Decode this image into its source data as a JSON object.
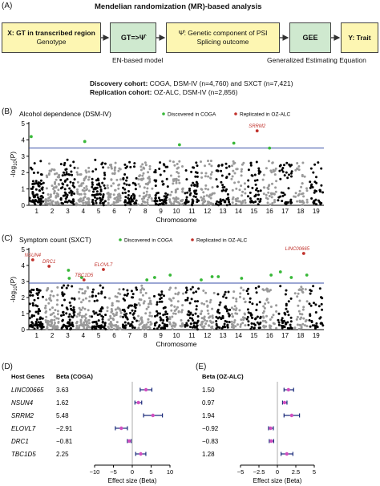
{
  "panel_a": {
    "letter": "(A)",
    "title": "Mendelian randomization (MR)-based analysis",
    "box_x_line1": "X: GT in transcribed region",
    "box_x_line2": "Genotype",
    "box_gt": "GT=>Ψ̂",
    "box_psi_line1": "Ψ̂: Genetic component of PSI",
    "box_psi_line2": "Splicing outcome",
    "box_gee": "GEE",
    "box_y": "Y: Trait",
    "label_en": "EN-based model",
    "label_gee": "Generalized Estimating Equation",
    "discovery_bold": "Discovery cohort:",
    "discovery_text": " COGA, DSM-IV (n=4,760) and SXCT (n=7,421)",
    "replication_bold": "Replication cohort:",
    "replication_text": " OZ-ALC, DSM-IV (n=2,856)",
    "colors": {
      "yellow": "#fdf6b2",
      "green": "#cfe9cf"
    }
  },
  "panel_b": {
    "letter": "(B)"
  },
  "panel_c": {
    "letter": "(C)"
  },
  "panel_d": {
    "letter": "(D)"
  },
  "panel_e": {
    "letter": "(E)"
  },
  "chart_data": [
    {
      "type": "scatter",
      "title": "Alcohol dependence (DSM-IV)",
      "xlabel": "Chromosome",
      "ylabel": "-log10(P)",
      "ylim": [
        0,
        5
      ],
      "yticks": [
        0,
        1,
        2,
        3,
        4,
        5
      ],
      "chromosomes": [
        "1",
        "2",
        "3",
        "4",
        "5",
        "6",
        "7",
        "8",
        "9",
        "10",
        "11",
        "12",
        "13",
        "14",
        "15",
        "16",
        "17",
        "18",
        "19"
      ],
      "threshold": 3.5,
      "legend": [
        "Discovered in COGA",
        "Replicated in OZ-ALC"
      ],
      "highlights": [
        {
          "x": 0.15,
          "y": 4.2,
          "type": "discovered"
        },
        {
          "x": 3.6,
          "y": 3.9,
          "type": "discovered"
        },
        {
          "x": 9.7,
          "y": 3.7,
          "type": "discovered"
        },
        {
          "x": 13.2,
          "y": 3.8,
          "type": "discovered"
        },
        {
          "x": 14.7,
          "y": 4.55,
          "type": "replicated",
          "label": "SRRM2"
        },
        {
          "x": 15.5,
          "y": 3.5,
          "type": "discovered"
        }
      ],
      "colors": {
        "discovered": "#38b838",
        "replicated": "#c0312b",
        "threshold": "#3a4fa8",
        "odd": "#000000",
        "even": "#9a9a9a"
      }
    },
    {
      "type": "scatter",
      "title": "Symptom count (SXCT)",
      "xlabel": "Chromosome",
      "ylabel": "-log10(P)",
      "ylim": [
        0,
        5
      ],
      "yticks": [
        0,
        1,
        2,
        3,
        4,
        5
      ],
      "chromosomes": [
        "1",
        "2",
        "3",
        "4",
        "5",
        "6",
        "7",
        "8",
        "9",
        "10",
        "11",
        "12",
        "13",
        "14",
        "15",
        "16",
        "17",
        "18",
        "19"
      ],
      "threshold": 2.9,
      "legend": [
        "Discovered in COGA",
        "Replicated in OZ-ALC"
      ],
      "highlights": [
        {
          "x": 0.25,
          "y": 4.35,
          "type": "replicated",
          "label": "NSUN4"
        },
        {
          "x": 1.3,
          "y": 3.95,
          "type": "replicated",
          "label": "DRC1"
        },
        {
          "x": 2.55,
          "y": 3.7,
          "type": "discovered"
        },
        {
          "x": 2.6,
          "y": 3.2,
          "type": "discovered"
        },
        {
          "x": 3.4,
          "y": 3.25,
          "type": "discovered"
        },
        {
          "x": 3.55,
          "y": 3.1,
          "type": "replicated",
          "label": "TBC1D5"
        },
        {
          "x": 4.8,
          "y": 3.75,
          "type": "replicated",
          "label": "ELOVL7"
        },
        {
          "x": 7.6,
          "y": 3.1,
          "type": "discovered"
        },
        {
          "x": 8.1,
          "y": 3.25,
          "type": "discovered"
        },
        {
          "x": 9.1,
          "y": 3.4,
          "type": "discovered"
        },
        {
          "x": 11.1,
          "y": 3.1,
          "type": "discovered"
        },
        {
          "x": 11.8,
          "y": 3.3,
          "type": "discovered"
        },
        {
          "x": 12.2,
          "y": 3.3,
          "type": "discovered"
        },
        {
          "x": 13.7,
          "y": 3.2,
          "type": "discovered"
        },
        {
          "x": 15.6,
          "y": 3.4,
          "type": "discovered"
        },
        {
          "x": 16.2,
          "y": 3.6,
          "type": "discovered"
        },
        {
          "x": 16.9,
          "y": 3.25,
          "type": "discovered"
        },
        {
          "x": 17.7,
          "y": 4.75,
          "type": "replicated",
          "label": "LINC00665"
        },
        {
          "x": 17.9,
          "y": 3.4,
          "type": "discovered"
        }
      ],
      "colors": {
        "discovered": "#38b838",
        "replicated": "#c0312b",
        "threshold": "#3a4fa8",
        "odd": "#000000",
        "even": "#9a9a9a"
      }
    },
    {
      "type": "forest",
      "header_gene": "Host Genes",
      "header_beta": "Beta (COGA)",
      "xlabel": "Effect size (Beta)",
      "xlim": [
        -10,
        10
      ],
      "xticks": [
        -10,
        -5,
        0,
        5,
        10
      ],
      "genes": [
        "LINC00665",
        "NSUN4",
        "SRRM2",
        "ELOVL7",
        "DRC1",
        "TBC1D5"
      ],
      "beta_labels": [
        "3.63",
        "1.62",
        "5.48",
        "−2.91",
        "−0.81",
        "2.25"
      ],
      "beta": [
        3.63,
        1.62,
        5.48,
        -2.91,
        -0.81,
        2.25
      ],
      "ci_low": [
        2.1,
        0.7,
        3.0,
        -4.5,
        -1.3,
        0.9
      ],
      "ci_high": [
        5.2,
        2.5,
        8.0,
        -1.3,
        -0.3,
        3.6
      ],
      "colors": {
        "point": "#d14fc0",
        "bar": "#1a2a7a"
      }
    },
    {
      "type": "forest",
      "header_beta": "Beta (OZ-ALC)",
      "xlabel": "Effect size (Beta)",
      "xlim": [
        -5,
        5
      ],
      "xticks": [
        -5,
        -2.5,
        0,
        2.5,
        5
      ],
      "beta_labels": [
        "1.50",
        "0.97",
        "1.94",
        "−0.92",
        "−0.83",
        "1.28"
      ],
      "beta": [
        1.5,
        0.97,
        1.94,
        -0.92,
        -0.83,
        1.28
      ],
      "ci_low": [
        0.9,
        0.7,
        0.9,
        -1.2,
        -1.1,
        0.5
      ],
      "ci_high": [
        2.2,
        1.3,
        3.0,
        -0.55,
        -0.5,
        2.1
      ],
      "colors": {
        "point": "#d14fc0",
        "bar": "#1a2a7a"
      }
    }
  ]
}
